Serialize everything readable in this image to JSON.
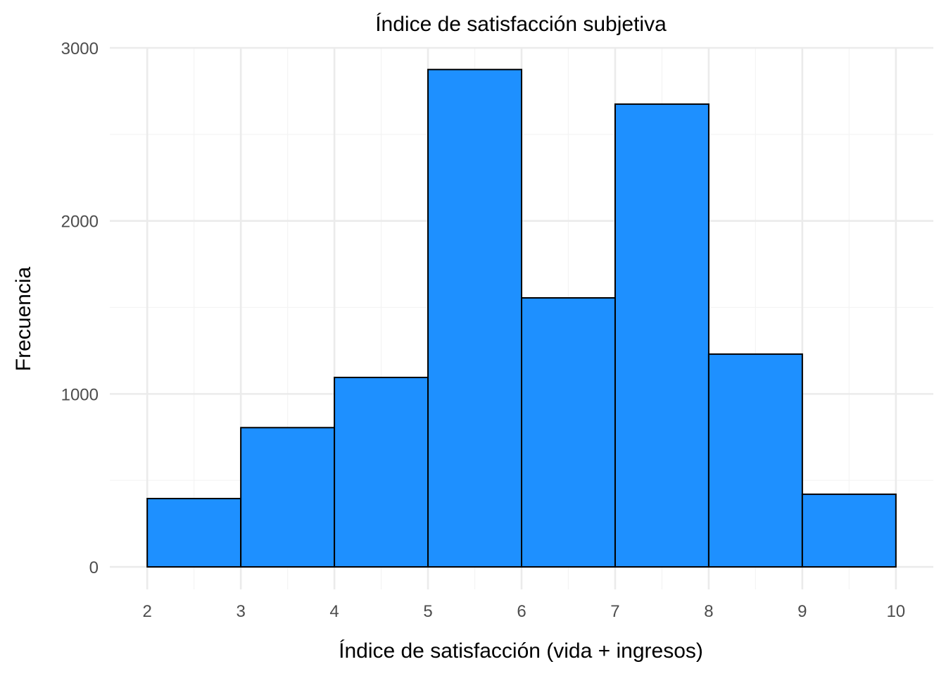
{
  "chart_data": {
    "type": "bar",
    "subtype": "histogram",
    "title": "Índice de satisfacción subjetiva",
    "xlabel": "Índice de satisfacción (vida + ingresos)",
    "ylabel": "Frecuencia",
    "bin_edges": [
      2,
      3,
      4,
      5,
      6,
      7,
      8,
      9,
      10
    ],
    "values": [
      395,
      805,
      1095,
      2875,
      1555,
      2675,
      1230,
      420
    ],
    "xlim": [
      1.6,
      10.4
    ],
    "ylim": [
      -130,
      3000
    ],
    "x_ticks": [
      "2",
      "3",
      "4",
      "5",
      "6",
      "7",
      "8",
      "9",
      "10"
    ],
    "y_ticks": [
      "0",
      "1000",
      "2000",
      "3000"
    ],
    "bar_color": "#1E90FF",
    "bar_outline": "#000000",
    "grid": true,
    "legend": "none"
  }
}
